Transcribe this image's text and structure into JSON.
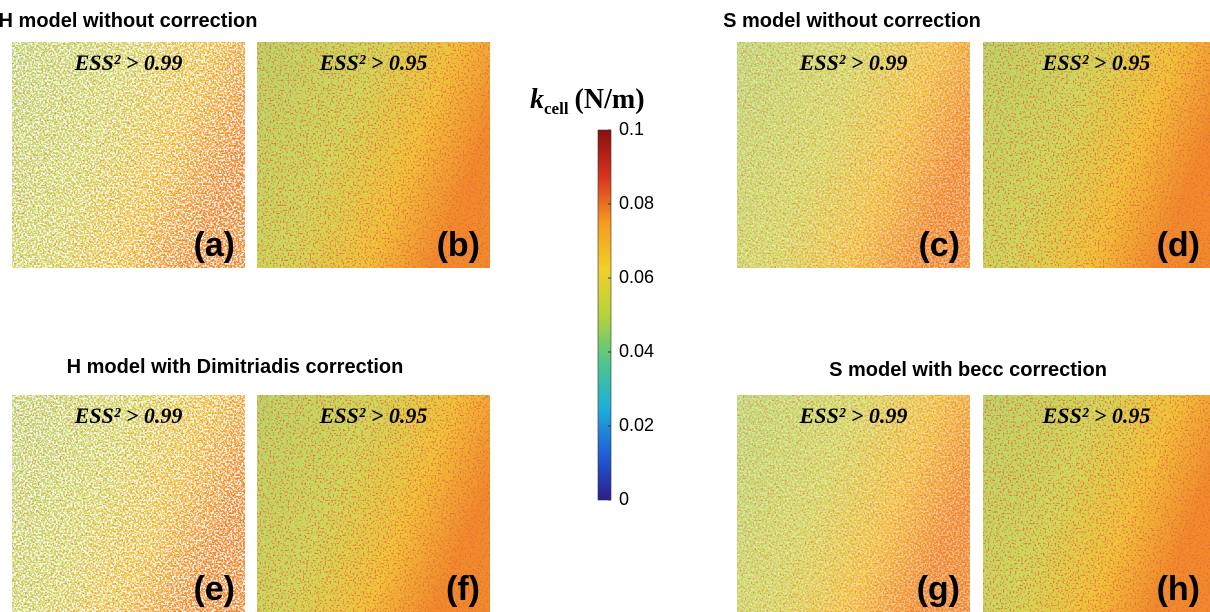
{
  "groups": [
    {
      "title": "H model without correction",
      "panels": [
        {
          "threshold": "ESS² > 0.99",
          "label": "(a)"
        },
        {
          "threshold": "ESS² > 0.95",
          "label": "(b)"
        }
      ]
    },
    {
      "title": "S model without correction",
      "panels": [
        {
          "threshold": "ESS² > 0.99",
          "label": "(c)"
        },
        {
          "threshold": "ESS² > 0.95",
          "label": "(d)"
        }
      ]
    },
    {
      "title": "H model with Dimitriadis correction",
      "panels": [
        {
          "threshold": "ESS² > 0.99",
          "label": "(e)"
        },
        {
          "threshold": "ESS² > 0.95",
          "label": "(f)"
        }
      ]
    },
    {
      "title": "S model with becc correction",
      "panels": [
        {
          "threshold": "ESS² > 0.99",
          "label": "(g)"
        },
        {
          "threshold": "ESS² > 0.95",
          "label": "(h)"
        }
      ]
    }
  ],
  "colorbar": {
    "symbol": "k",
    "subscript": "cell",
    "unit": "(N/m)",
    "lim": [
      0,
      0.1
    ],
    "ticks": [
      0,
      0.02,
      0.04,
      0.06,
      0.08,
      0.1
    ],
    "colors": [
      "#2a1f8a",
      "#1f5fd8",
      "#1fb0d8",
      "#4fc68a",
      "#b8d23a",
      "#f2d02a",
      "#f59a22",
      "#d8321e",
      "#8a0f0f"
    ]
  }
}
